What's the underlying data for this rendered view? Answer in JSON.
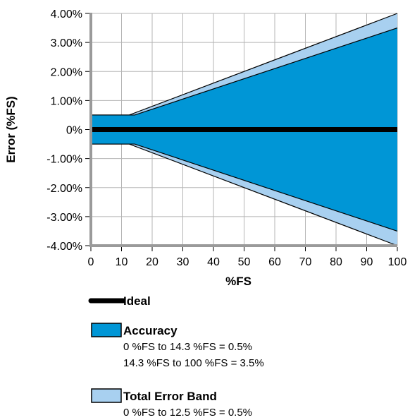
{
  "chart_data": {
    "type": "area",
    "xlabel": "%FS",
    "ylabel": "Error (%FS)",
    "xlim": [
      0,
      100
    ],
    "ylim": [
      -4,
      4
    ],
    "x_ticks": [
      0,
      10,
      20,
      30,
      40,
      50,
      60,
      70,
      80,
      90,
      100
    ],
    "y_ticks": [
      -4,
      -3,
      -2,
      -1,
      0,
      1,
      2,
      3,
      4
    ],
    "y_tick_labels": [
      "-4.00%",
      "-3.00%",
      "-2.00%",
      "-1.00%",
      "0%",
      "1.00%",
      "2.00%",
      "3.00%",
      "4.00%"
    ],
    "grid": true,
    "legend_position": "bottom",
    "series": [
      {
        "name": "Total Error Band",
        "color": "#a8d0f0",
        "upper": [
          [
            0,
            0.5
          ],
          [
            12.5,
            0.5
          ],
          [
            100,
            4.0
          ]
        ],
        "lower": [
          [
            0,
            -0.5
          ],
          [
            12.5,
            -0.5
          ],
          [
            100,
            -4.0
          ]
        ]
      },
      {
        "name": "Accuracy",
        "color": "#0096d6",
        "upper": [
          [
            0,
            0.5
          ],
          [
            14.3,
            0.5
          ],
          [
            100,
            3.5
          ]
        ],
        "lower": [
          [
            0,
            -0.5
          ],
          [
            14.3,
            -0.5
          ],
          [
            100,
            -3.5
          ]
        ]
      },
      {
        "name": "Ideal",
        "color": "#000000",
        "points": [
          [
            0,
            0
          ],
          [
            100,
            0
          ]
        ]
      }
    ],
    "legend": [
      {
        "name": "Ideal",
        "kind": "line",
        "color": "#000000",
        "notes": []
      },
      {
        "name": "Accuracy",
        "kind": "box",
        "color": "#0096d6",
        "notes": [
          "0 %FS to 14.3 %FS = 0.5%",
          "14.3 %FS to 100 %FS = 3.5%"
        ]
      },
      {
        "name": "Total Error Band",
        "kind": "box",
        "color": "#a8d0f0",
        "notes": [
          "0 %FS to 12.5 %FS = 0.5%"
        ]
      }
    ]
  }
}
